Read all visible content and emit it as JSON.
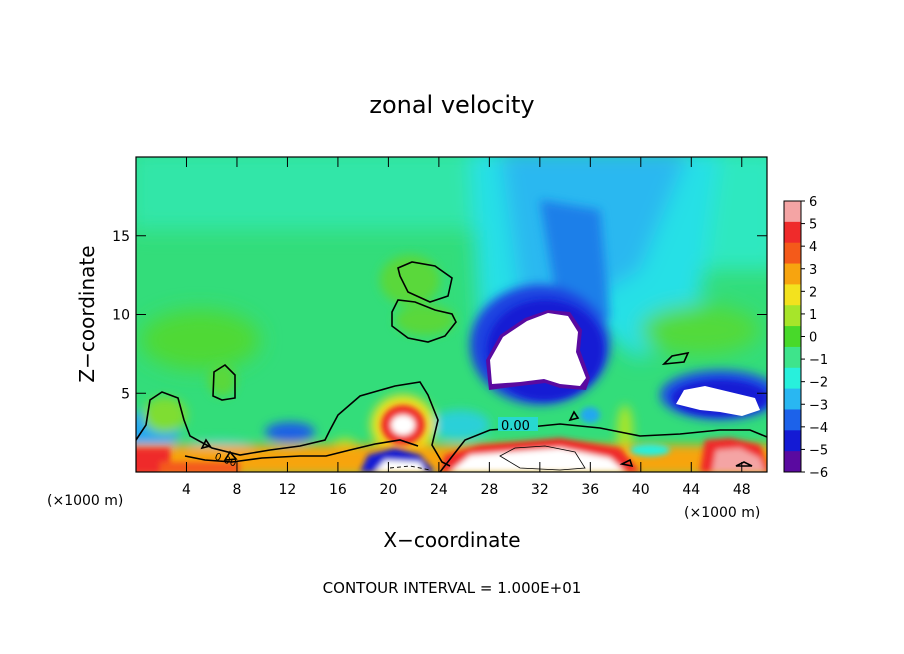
{
  "chart_data": {
    "type": "heatmap",
    "title": "zonal velocity",
    "xlabel": "X−coordinate",
    "ylabel": "Z−coordinate",
    "x_unit_left": "(×1000 m)",
    "x_unit_right": "(×1000 m)",
    "xlim": [
      0,
      50
    ],
    "ylim": [
      0,
      20
    ],
    "x_ticks": [
      4,
      8,
      12,
      16,
      20,
      24,
      28,
      32,
      36,
      40,
      44,
      48
    ],
    "x_tick_labels": [
      "4",
      "8",
      "12",
      "16",
      "20",
      "24",
      "28",
      "32",
      "36",
      "40",
      "44",
      "48"
    ],
    "y_ticks": [
      5,
      10,
      15
    ],
    "y_tick_labels": [
      "5",
      "10",
      "15"
    ],
    "colorbar": {
      "min": -6,
      "max": 6,
      "tick_labels": [
        "6",
        "5",
        "4",
        "3",
        "2",
        "1",
        "0",
        "−1",
        "−2",
        "−3",
        "−4",
        "−5",
        "−6"
      ],
      "colors": [
        "#f4a4a4",
        "#ef2b2b",
        "#f45a1a",
        "#f7a40f",
        "#f3e21e",
        "#a7e52a",
        "#48d92a",
        "#3ee48b",
        "#28f0dc",
        "#29b7f2",
        "#1c62ea",
        "#141ad4",
        "#5a0aa0"
      ]
    },
    "contour_labels": [
      "0.00",
      "0.00"
    ],
    "footer": "CONTOUR INTERVAL = 1.000E+01"
  }
}
